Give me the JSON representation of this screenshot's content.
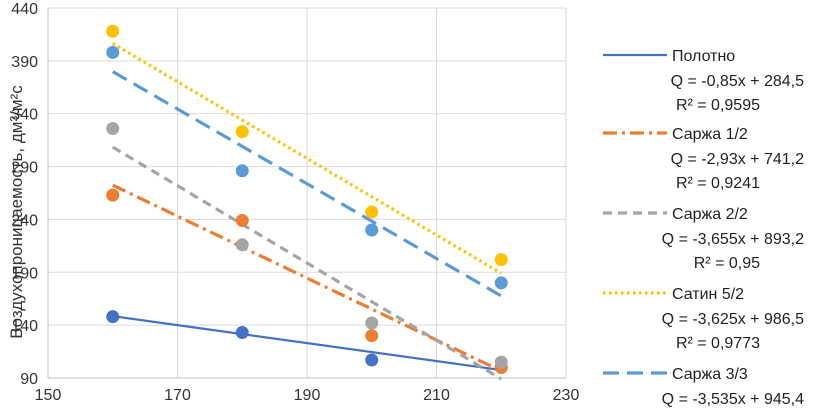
{
  "chart_data": {
    "type": "scatter",
    "title": "",
    "xlabel": "",
    "ylabel": "Воздухопроницаемость, дм³/м²с",
    "xlim": [
      150,
      230
    ],
    "ylim": [
      90,
      440
    ],
    "x_ticks": [
      "150",
      "170",
      "190",
      "210",
      "230"
    ],
    "y_ticks": [
      "90",
      "140",
      "190",
      "240",
      "290",
      "340",
      "390",
      "440"
    ],
    "grid": true,
    "legend_position": "right",
    "series": [
      {
        "name": "Полотно",
        "color": "#4472c4",
        "line_style": "solid",
        "x": [
          160,
          180,
          200,
          220
        ],
        "y": [
          148,
          133,
          107,
          100
        ],
        "trend": {
          "x": [
            160,
            220
          ],
          "y": [
            148.5,
            97.5
          ]
        },
        "equation": "Q = -0,85x + 284,5",
        "r2": "R² = 0,9595"
      },
      {
        "name": "Саржа 1/2",
        "color": "#ed7d31",
        "line_style": "dashdot",
        "x": [
          160,
          180,
          200,
          220
        ],
        "y": [
          263,
          239,
          130,
          100
        ],
        "trend": {
          "x": [
            160,
            220
          ],
          "y": [
            272.4,
            96.6
          ]
        },
        "equation": "Q = -2,93x + 741,2",
        "r2": "R² = 0,9241"
      },
      {
        "name": "Саржа 2/2",
        "color": "#a5a5a5",
        "line_style": "dashed",
        "x": [
          160,
          180,
          200,
          220
        ],
        "y": [
          326,
          216,
          142,
          105
        ],
        "trend": {
          "x": [
            160,
            220
          ],
          "y": [
            308.4,
            89.1
          ]
        },
        "equation": "Q = -3,655x + 893,2",
        "r2": "R² = 0,95"
      },
      {
        "name": "Сатин 5/2",
        "color": "#ffc000",
        "line_style": "dotted",
        "x": [
          160,
          180,
          200,
          220
        ],
        "y": [
          418,
          323,
          247,
          202
        ],
        "trend": {
          "x": [
            160,
            220
          ],
          "y": [
            406.5,
            189
          ]
        },
        "equation": "Q = -3,625x + 986,5",
        "r2": "R² = 0,9773"
      },
      {
        "name": "Саржа 3/3",
        "color": "#5b9bd5",
        "line_style": "longdash",
        "x": [
          160,
          180,
          200,
          220
        ],
        "y": [
          398,
          286,
          230,
          180
        ],
        "trend": {
          "x": [
            160,
            220
          ],
          "y": [
            379.8,
            167.7
          ]
        },
        "equation": "Q = -3,535x + 945,4",
        "r2": ""
      }
    ]
  }
}
